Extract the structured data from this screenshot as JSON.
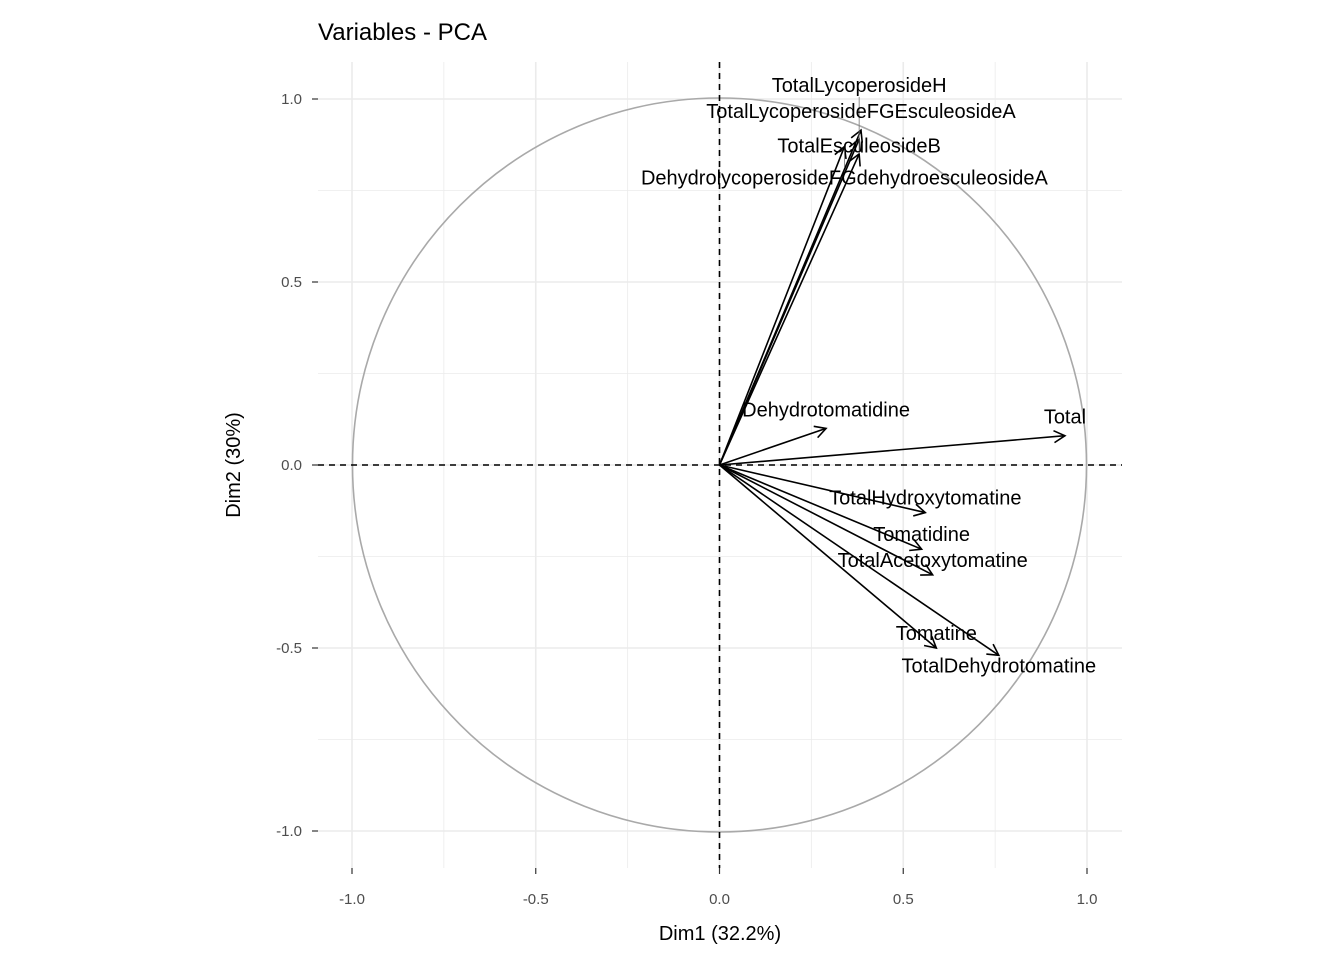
{
  "chart_data": {
    "type": "scatter",
    "title": "Variables - PCA",
    "xlabel": "Dim1 (32.2%)",
    "ylabel": "Dim2 (30%)",
    "xlim": [
      -1.09,
      1.095
    ],
    "ylim": [
      -1.1,
      1.1
    ],
    "xticks": [
      "-1.0",
      "-0.5",
      "0.0",
      "0.5",
      "1.0"
    ],
    "yticks": [
      "-1.0",
      "-0.5",
      "0.0",
      "0.5",
      "1.0"
    ],
    "grid": true,
    "correlation_circle": true,
    "colors": {
      "arrow": "#000000",
      "circle": "#a9a9a9",
      "grid": "#ebebeb"
    },
    "variables": [
      {
        "name": "Total",
        "x": 0.94,
        "y": 0.08
      },
      {
        "name": "Dehydrotomatidine",
        "x": 0.29,
        "y": 0.1
      },
      {
        "name": "TotalHydroxytomatine",
        "x": 0.56,
        "y": -0.13
      },
      {
        "name": "Tomatidine",
        "x": 0.55,
        "y": -0.23
      },
      {
        "name": "TotalAcetoxytomatine",
        "x": 0.58,
        "y": -0.3
      },
      {
        "name": "Tomatine",
        "x": 0.59,
        "y": -0.5
      },
      {
        "name": "TotalDehydrotomatine",
        "x": 0.76,
        "y": -0.52
      },
      {
        "name": "TotalLycoperosideFGEsculeosideA",
        "x": 0.385,
        "y": 0.915
      },
      {
        "name": "TotalEsculeosideB",
        "x": 0.38,
        "y": 0.89
      },
      {
        "name": "DehydrolycoperosideFGdehydroesculeosideA",
        "x": 0.34,
        "y": 0.87
      },
      {
        "name": "TotalLycoperosideH",
        "x": 0.38,
        "y": 0.85
      }
    ]
  }
}
